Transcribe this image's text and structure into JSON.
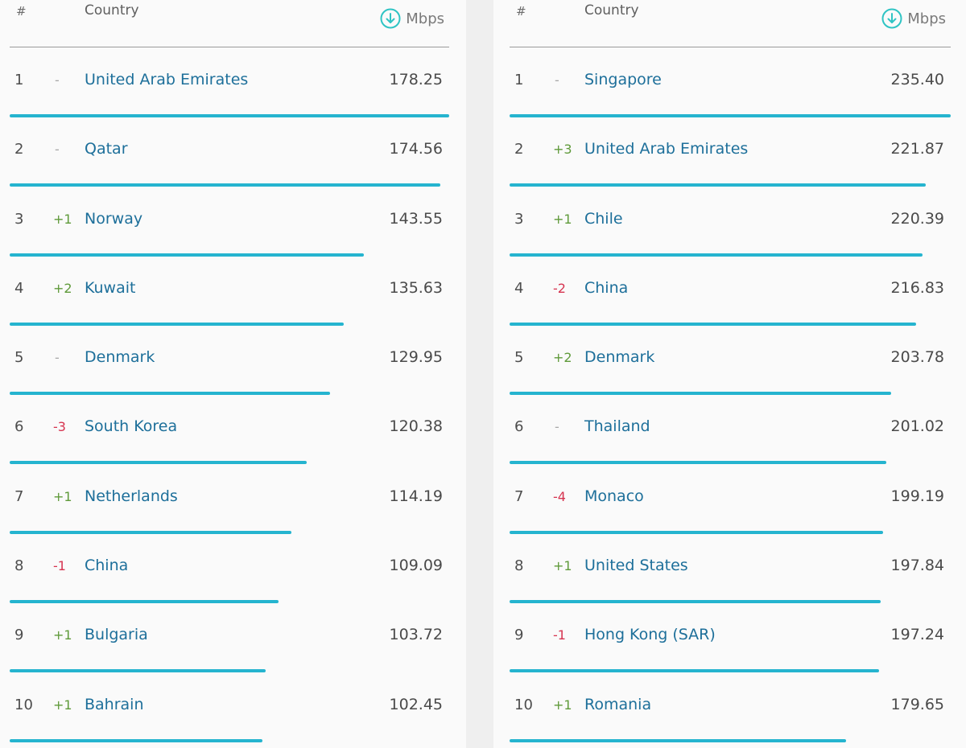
{
  "header": {
    "rank_label": "#",
    "country_label": "Country",
    "unit_label": "Mbps",
    "unit_icon": "download-circle-icon"
  },
  "colors": {
    "bar": "#25b4cf",
    "country_link": "#1d6f9a",
    "change_up": "#5f9a3a",
    "change_down": "#d6334f",
    "change_same": "#a8a8a8"
  },
  "tables": [
    {
      "rows": [
        {
          "rank": "1",
          "change": "-",
          "country": "United Arab Emirates",
          "speed": "178.25",
          "value": 178.25
        },
        {
          "rank": "2",
          "change": "-",
          "country": "Qatar",
          "speed": "174.56",
          "value": 174.56
        },
        {
          "rank": "3",
          "change": "+1",
          "country": "Norway",
          "speed": "143.55",
          "value": 143.55
        },
        {
          "rank": "4",
          "change": "+2",
          "country": "Kuwait",
          "speed": "135.63",
          "value": 135.63
        },
        {
          "rank": "5",
          "change": "-",
          "country": "Denmark",
          "speed": "129.95",
          "value": 129.95
        },
        {
          "rank": "6",
          "change": "-3",
          "country": "South Korea",
          "speed": "120.38",
          "value": 120.38
        },
        {
          "rank": "7",
          "change": "+1",
          "country": "Netherlands",
          "speed": "114.19",
          "value": 114.19
        },
        {
          "rank": "8",
          "change": "-1",
          "country": "China",
          "speed": "109.09",
          "value": 109.09
        },
        {
          "rank": "9",
          "change": "+1",
          "country": "Bulgaria",
          "speed": "103.72",
          "value": 103.72
        },
        {
          "rank": "10",
          "change": "+1",
          "country": "Bahrain",
          "speed": "102.45",
          "value": 102.45
        }
      ]
    },
    {
      "rows": [
        {
          "rank": "1",
          "change": "-",
          "country": "Singapore",
          "speed": "235.40",
          "value": 235.4
        },
        {
          "rank": "2",
          "change": "+3",
          "country": "United Arab Emirates",
          "speed": "221.87",
          "value": 221.87
        },
        {
          "rank": "3",
          "change": "+1",
          "country": "Chile",
          "speed": "220.39",
          "value": 220.39
        },
        {
          "rank": "4",
          "change": "-2",
          "country": "China",
          "speed": "216.83",
          "value": 216.83
        },
        {
          "rank": "5",
          "change": "+2",
          "country": "Denmark",
          "speed": "203.78",
          "value": 203.78
        },
        {
          "rank": "6",
          "change": "-",
          "country": "Thailand",
          "speed": "201.02",
          "value": 201.02
        },
        {
          "rank": "7",
          "change": "-4",
          "country": "Monaco",
          "speed": "199.19",
          "value": 199.19
        },
        {
          "rank": "8",
          "change": "+1",
          "country": "United States",
          "speed": "197.84",
          "value": 197.84
        },
        {
          "rank": "9",
          "change": "-1",
          "country": "Hong Kong (SAR)",
          "speed": "197.24",
          "value": 197.24
        },
        {
          "rank": "10",
          "change": "+1",
          "country": "Romania",
          "speed": "179.65",
          "value": 179.65
        }
      ]
    }
  ]
}
